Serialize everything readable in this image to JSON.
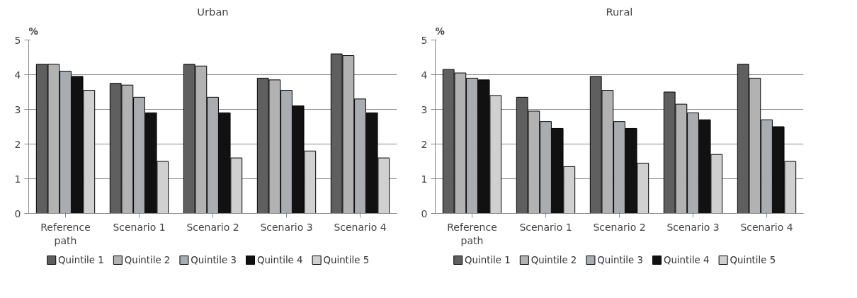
{
  "chart_data": [
    {
      "type": "bar",
      "title": "Urban",
      "ylabel": "%",
      "categories": [
        "Reference path",
        "Scenario 1",
        "Scenario 2",
        "Scenario 3",
        "Scenario 4"
      ],
      "ylim": [
        0,
        5
      ],
      "yticks": [
        0,
        1,
        2,
        3,
        4,
        5
      ],
      "grid": "y",
      "legend": "bottom",
      "series": [
        {
          "name": "Quintile 1",
          "color": "#5f5f5f",
          "values": [
            4.3,
            3.75,
            4.3,
            3.9,
            4.6
          ]
        },
        {
          "name": "Quintile 2",
          "color": "#b2b2b2",
          "values": [
            4.3,
            3.7,
            4.25,
            3.85,
            4.55
          ]
        },
        {
          "name": "Quintile 3",
          "color": "#a9adb2",
          "values": [
            4.1,
            3.35,
            3.35,
            3.55,
            3.3
          ]
        },
        {
          "name": "Quintile 4",
          "color": "#111111",
          "values": [
            3.95,
            2.9,
            2.9,
            3.1,
            2.9
          ]
        },
        {
          "name": "Quintile 5",
          "color": "#d0d0d0",
          "values": [
            3.55,
            1.5,
            1.6,
            1.8,
            1.6
          ]
        }
      ]
    },
    {
      "type": "bar",
      "title": "Rural",
      "ylabel": "%",
      "categories": [
        "Reference path",
        "Scenario 1",
        "Scenario 2",
        "Scenario 3",
        "Scenario 4"
      ],
      "ylim": [
        0,
        5
      ],
      "yticks": [
        0,
        1,
        2,
        3,
        4,
        5
      ],
      "grid": "y",
      "legend": "bottom",
      "series": [
        {
          "name": "Quintile 1",
          "color": "#5f5f5f",
          "values": [
            4.15,
            3.35,
            3.95,
            3.5,
            4.3
          ]
        },
        {
          "name": "Quintile 2",
          "color": "#b2b2b2",
          "values": [
            4.05,
            2.95,
            3.55,
            3.15,
            3.9
          ]
        },
        {
          "name": "Quintile 3",
          "color": "#a9adb2",
          "values": [
            3.9,
            2.65,
            2.65,
            2.9,
            2.7
          ]
        },
        {
          "name": "Quintile 4",
          "color": "#111111",
          "values": [
            3.85,
            2.45,
            2.45,
            2.7,
            2.5
          ]
        },
        {
          "name": "Quintile 5",
          "color": "#d0d0d0",
          "values": [
            3.4,
            1.35,
            1.45,
            1.7,
            1.5
          ]
        }
      ]
    }
  ]
}
